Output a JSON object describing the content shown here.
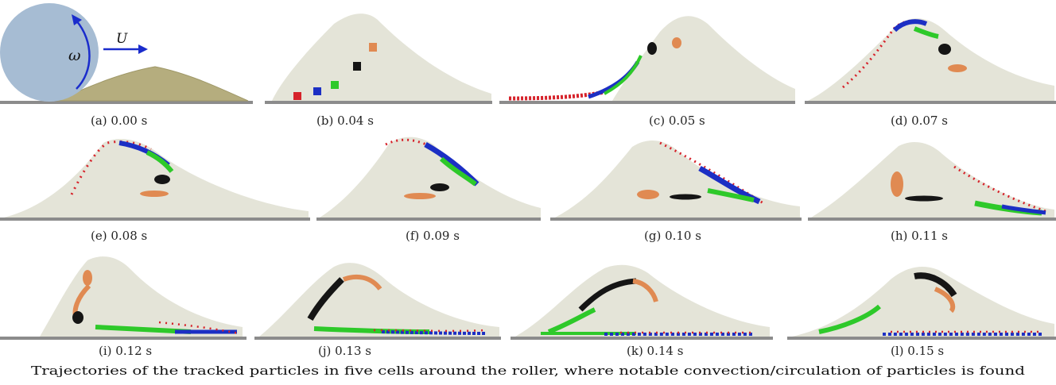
{
  "figure": {
    "caption": "Trajectories of the tracked particles in five cells around the roller, where notable convection/circulation of particles is found",
    "symbols": {
      "rotation": "ω",
      "velocity": "U"
    },
    "panels": [
      {
        "label": "(a)  0.00 s"
      },
      {
        "label": "(b)  0.04 s"
      },
      {
        "label": "(c)  0.05 s"
      },
      {
        "label": "(d)  0.07 s"
      },
      {
        "label": "(e)  0.08 s"
      },
      {
        "label": "(f)  0.09 s"
      },
      {
        "label": "(g)  0.10 s"
      },
      {
        "label": "(h)  0.11 s"
      },
      {
        "label": "(i)  0.12 s"
      },
      {
        "label": "(j)  0.13 s"
      },
      {
        "label": "(k)  0.14 s"
      },
      {
        "label": "(l)  0.15 s"
      }
    ]
  },
  "colors": {
    "sand": "#e4e4d8",
    "sand_initial": "#b5ad7e",
    "ground": "#8c8c8c",
    "roller": "#a6bcd3",
    "arrow": "#1a2ccc",
    "red": "#d6222a",
    "blue": "#1c2fc4",
    "green": "#2ec92a",
    "black": "#151515",
    "orange": "#e08a52"
  }
}
